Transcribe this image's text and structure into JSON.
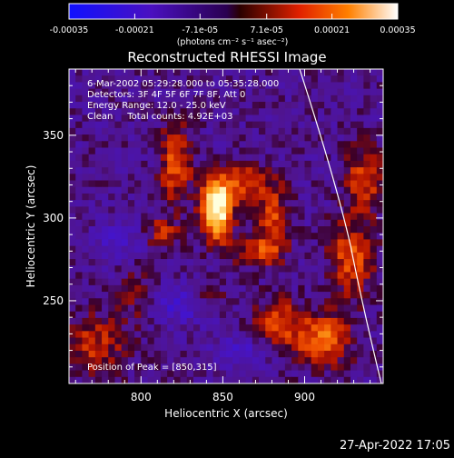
{
  "colorbar": {
    "ticks": [
      "-0.00035",
      "-0.00021",
      "-7.1e-05",
      "7.1e-05",
      "0.00021",
      "0.00035"
    ],
    "unit_label": "(photons cm⁻² s⁻¹ asec⁻²)",
    "range": [
      -0.00035,
      0.00035
    ]
  },
  "chart_data": {
    "type": "heatmap",
    "title": "Reconstructed RHESSI Image",
    "xlabel": "Heliocentric X (arcsec)",
    "ylabel": "Heliocentric Y (arcsec)",
    "xlim": [
      756,
      948
    ],
    "ylim": [
      200,
      390
    ],
    "x_ticks": [
      800,
      850,
      900
    ],
    "y_ticks": [
      250,
      300,
      350
    ],
    "colormap": "blue-purple-red-yellow-white",
    "peak": [
      850,
      315
    ],
    "limb_arc": "white curve through upper-right",
    "annotations": [
      "6-Mar-2002 05:29:28.000 to 05:35:28.000",
      "Detectors: 3F 4F 5F 6F 7F 8F, Att 0",
      "Energy Range: 12.0 - 25.0 keV",
      "Clean     Total counts: 4.92E+03"
    ],
    "peak_label": "Position of Peak = [850,315]"
  },
  "timestamp": "27-Apr-2022 17:05"
}
